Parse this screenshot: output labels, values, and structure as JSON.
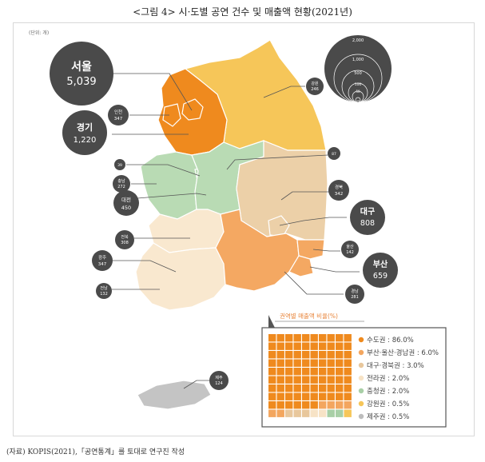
{
  "title": "<그림 4> 시·도별 공연 건수 및 매출액 현황(2021년)",
  "unit_label": "(단위: 개)",
  "source": "(자료) KOPIS(2021),「공연통계」를 토대로 연구진 작성",
  "bubble_scale": {
    "values": [
      "2,000",
      "1,000",
      "500",
      "100",
      "50",
      "10"
    ]
  },
  "regions": [
    {
      "id": "seoul",
      "name": "서울",
      "value": "5,039",
      "group": "sudo"
    },
    {
      "id": "gyeonggi",
      "name": "경기",
      "value": "1,220",
      "group": "sudo"
    },
    {
      "id": "incheon",
      "name": "인천",
      "value": "347",
      "group": "sudo"
    },
    {
      "id": "gangwon",
      "name": "강원",
      "value": "246",
      "group": "gangwon"
    },
    {
      "id": "sejong",
      "name": "세종",
      "value": "39",
      "group": "chungcheong"
    },
    {
      "id": "chungbuk",
      "name": "충북",
      "value": "87",
      "group": "chungcheong"
    },
    {
      "id": "chungnam",
      "name": "충남",
      "value": "272",
      "group": "chungcheong"
    },
    {
      "id": "daejeon",
      "name": "대전",
      "value": "450",
      "group": "chungcheong"
    },
    {
      "id": "gyeongbuk",
      "name": "경북",
      "value": "342",
      "group": "daegyeong"
    },
    {
      "id": "daegu",
      "name": "대구",
      "value": "808",
      "group": "daegyeong"
    },
    {
      "id": "jeonbuk",
      "name": "전북",
      "value": "308",
      "group": "jeolla"
    },
    {
      "id": "gwangju",
      "name": "광주",
      "value": "347",
      "group": "jeolla"
    },
    {
      "id": "jeonnam",
      "name": "전남",
      "value": "132",
      "group": "jeolla"
    },
    {
      "id": "ulsan",
      "name": "울산",
      "value": "142",
      "group": "busan_ulsan_gyeongnam"
    },
    {
      "id": "busan",
      "name": "부산",
      "value": "659",
      "group": "busan_ulsan_gyeongnam"
    },
    {
      "id": "gyeongnam",
      "name": "경남",
      "value": "281",
      "group": "busan_ulsan_gyeongnam"
    },
    {
      "id": "jeju",
      "name": "제주",
      "value": "124",
      "group": "jeju"
    }
  ],
  "legend": {
    "title": "권역별 매출액 비율(%)",
    "items": [
      {
        "label": "수도권 : 86.0%",
        "color": "#ef8a1e",
        "percent": 86
      },
      {
        "label": "부산·울산·경남권 : 6.0%",
        "color": "#f3a65f",
        "percent": 6
      },
      {
        "label": "대구·경북권 : 3.0%",
        "color": "#e8c79c",
        "percent": 3
      },
      {
        "label": "전라권 : 2.0%",
        "color": "#f7e3c6",
        "percent": 2
      },
      {
        "label": "충청권 : 2.0%",
        "color": "#a8cfa6",
        "percent": 2
      },
      {
        "label": "강원권 : 0.5%",
        "color": "#f6c659",
        "percent": 0.5
      },
      {
        "label": "제주권 : 0.5%",
        "color": "#bdbdbd",
        "percent": 0.5
      }
    ]
  },
  "colors": {
    "sudo": "#ef8a1e",
    "gangwon": "#f6c659",
    "chungcheong": "#b9dbb4",
    "daegyeong": "#ecd0a8",
    "jeolla": "#f9e8cf",
    "busan_ulsan_gyeongnam": "#f4a862",
    "jeju": "#c4c4c4",
    "bubble": "#4a4a4a",
    "border": "#ffffff"
  }
}
